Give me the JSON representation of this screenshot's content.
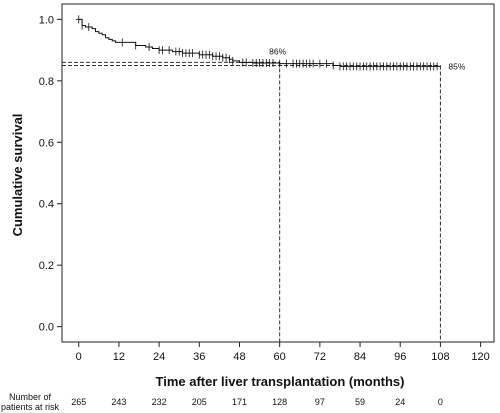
{
  "chart_data": {
    "type": "line",
    "title": "",
    "xlabel": "Time after liver transplantation (months)",
    "ylabel": "Cumulative survival",
    "xlim": [
      -5,
      124
    ],
    "ylim": [
      -0.05,
      1.05
    ],
    "x_ticks": [
      0,
      12,
      24,
      36,
      48,
      60,
      72,
      84,
      96,
      108,
      120
    ],
    "y_ticks": [
      0.0,
      0.2,
      0.4,
      0.6,
      0.8,
      1.0
    ],
    "y_tick_labels": [
      "0.0",
      "0.2",
      "0.4",
      "0.6",
      "0.8",
      "1.0"
    ],
    "grid": false,
    "series": [
      {
        "steps": [
          [
            0,
            1.0
          ],
          [
            1,
            0.98
          ],
          [
            2,
            0.975
          ],
          [
            4,
            0.97
          ],
          [
            5,
            0.96
          ],
          [
            6,
            0.955
          ],
          [
            7,
            0.95
          ],
          [
            8,
            0.94
          ],
          [
            9,
            0.935
          ],
          [
            10,
            0.93
          ],
          [
            11,
            0.925
          ],
          [
            17,
            0.915
          ],
          [
            20,
            0.91
          ],
          [
            22,
            0.905
          ],
          [
            24,
            0.9
          ],
          [
            28,
            0.895
          ],
          [
            31,
            0.89
          ],
          [
            36,
            0.885
          ],
          [
            40,
            0.88
          ],
          [
            43,
            0.875
          ],
          [
            45,
            0.87
          ],
          [
            46,
            0.865
          ],
          [
            48,
            0.86
          ],
          [
            52,
            0.858
          ],
          [
            60,
            0.856
          ],
          [
            76,
            0.85
          ],
          [
            78,
            0.847
          ]
        ],
        "end_x": 108,
        "censor_x": [
          0,
          1,
          3,
          13,
          17,
          21,
          24,
          25,
          27,
          29,
          30,
          31,
          32,
          33,
          34,
          36,
          37,
          38,
          39,
          40,
          41,
          42,
          43,
          44,
          45,
          46,
          49,
          50,
          52,
          53,
          54,
          55,
          56,
          57,
          58,
          60,
          62,
          64,
          65,
          66,
          67,
          68,
          69,
          70,
          72,
          74,
          76,
          78,
          79,
          80,
          81,
          82,
          83,
          84,
          85,
          86,
          87,
          88,
          89,
          90,
          91,
          92,
          93,
          94,
          95,
          96,
          97,
          98,
          99,
          100,
          101,
          102,
          103,
          104,
          105,
          106,
          107
        ]
      }
    ],
    "reference_lines": [
      {
        "x": 60,
        "y": 0.86,
        "label": "86%"
      },
      {
        "x": 108,
        "y": 0.85,
        "label": "85%"
      }
    ],
    "risk_table": {
      "label_line1": "Number of",
      "label_line2": "patients at risk",
      "times": [
        0,
        12,
        24,
        36,
        48,
        60,
        72,
        84,
        96,
        108
      ],
      "counts": [
        "265",
        "243",
        "232",
        "205",
        "171",
        "128",
        "97",
        "59",
        "24",
        "0"
      ]
    }
  }
}
